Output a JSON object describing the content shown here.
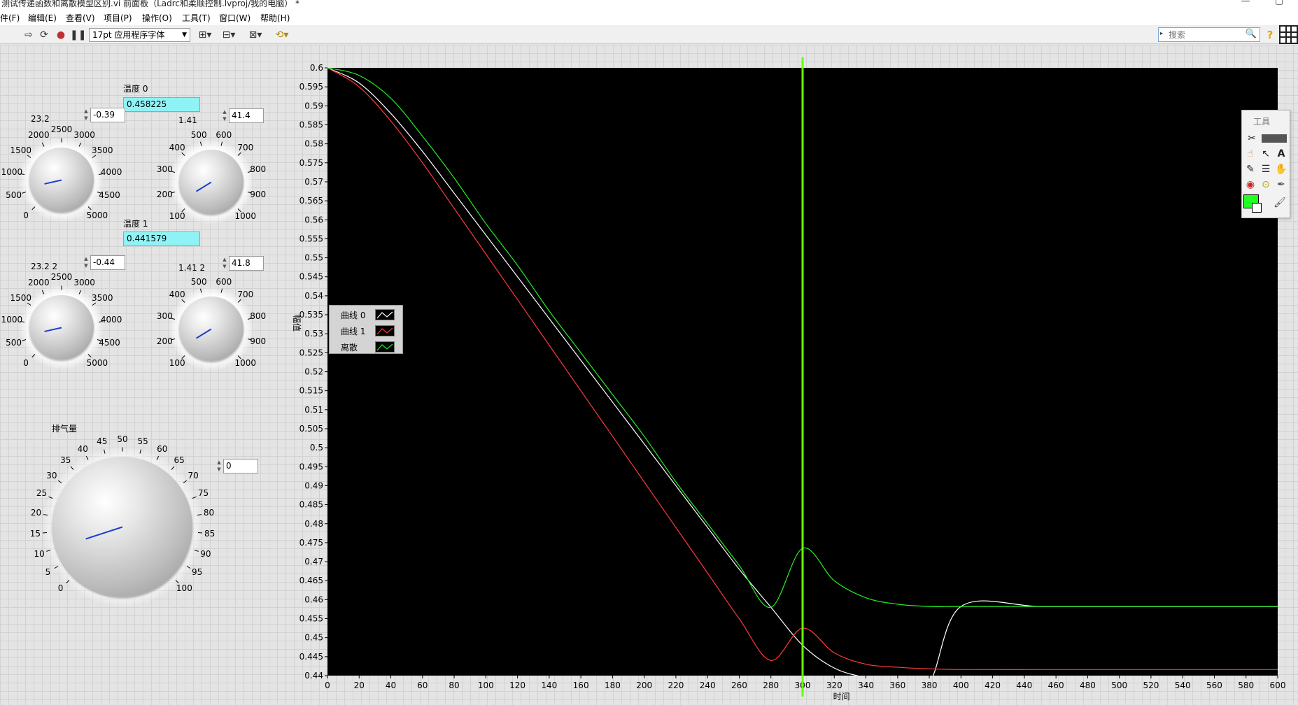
{
  "window": {
    "title": "测试传递函数和离散模型区别.vi 前面板（Ladrc和柔顺控制.lvproj/我的电脑） *",
    "minimize": "—",
    "maximize": "▢"
  },
  "menu": [
    "件(F)",
    "编辑(E)",
    "查看(V)",
    "项目(P)",
    "操作(O)",
    "工具(T)",
    "窗口(W)",
    "帮助(H)"
  ],
  "toolbar": {
    "font": "17pt 应用程序字体",
    "search_placeholder": "搜索"
  },
  "indicators": {
    "temp0_label": "温度 0",
    "temp0_value": "0.458225",
    "temp1_label": "温度 1",
    "temp1_value": "0.441579"
  },
  "controls": {
    "num1": "-0.39",
    "num2": "41.4",
    "num3": "-0.44",
    "num4": "41.8",
    "num5": "0"
  },
  "knobs": {
    "k1": {
      "label": "23.2",
      "ticks": [
        "0",
        "500",
        "1000",
        "1500",
        "2000",
        "2500",
        "3000",
        "3500",
        "4000",
        "4500",
        "5000"
      ],
      "value": 0.12
    },
    "k2": {
      "label": "1.41",
      "ticks": [
        "100",
        "200",
        "300",
        "400",
        "500",
        "600",
        "700",
        "800",
        "900",
        "1000"
      ],
      "value": 0.05
    },
    "k3": {
      "label": "23.2 2",
      "ticks": [
        "0",
        "500",
        "1000",
        "1500",
        "2000",
        "2500",
        "3000",
        "3500",
        "4000",
        "4500",
        "5000"
      ],
      "value": 0.12
    },
    "k4": {
      "label": "1.41 2",
      "ticks": [
        "100",
        "200",
        "300",
        "400",
        "500",
        "600",
        "700",
        "800",
        "900",
        "1000"
      ],
      "value": 0.05
    },
    "k5": {
      "label": "排气量",
      "ticks": [
        "0",
        "5",
        "10",
        "15",
        "20",
        "25",
        "30",
        "35",
        "40",
        "45",
        "50",
        "55",
        "60",
        "65",
        "70",
        "75",
        "80",
        "85",
        "90",
        "95",
        "100"
      ],
      "value": 0.1
    }
  },
  "legend": [
    {
      "name": "曲线 0",
      "color": "#ffffff"
    },
    {
      "name": "曲线 1",
      "color": "#ff3a3a"
    },
    {
      "name": "离散",
      "color": "#22ee22"
    }
  ],
  "tools_palette": {
    "title": "工具"
  },
  "chart_data": {
    "type": "line",
    "xlabel": "时间",
    "ylabel": "幅值",
    "xlim": [
      0,
      600
    ],
    "ylim": [
      0.44,
      0.6
    ],
    "x_ticks": [
      0,
      20,
      40,
      60,
      80,
      100,
      120,
      140,
      160,
      180,
      200,
      220,
      240,
      260,
      280,
      300,
      320,
      340,
      360,
      380,
      400,
      420,
      440,
      460,
      480,
      500,
      520,
      540,
      560,
      580,
      600
    ],
    "y_ticks": [
      0.44,
      0.445,
      0.45,
      0.455,
      0.46,
      0.465,
      0.47,
      0.475,
      0.48,
      0.485,
      0.49,
      0.495,
      0.5,
      0.505,
      0.51,
      0.515,
      0.52,
      0.525,
      0.53,
      0.535,
      0.54,
      0.545,
      0.55,
      0.555,
      0.56,
      0.565,
      0.57,
      0.575,
      0.58,
      0.585,
      0.59,
      0.595,
      0.6
    ],
    "cursor_x": 300,
    "cursor_color": "#66ff00",
    "grid": false,
    "legend_position": "left-middle",
    "series": [
      {
        "name": "曲线 0",
        "color": "#ffffff",
        "x": [
          0,
          20,
          40,
          60,
          80,
          100,
          120,
          140,
          160,
          180,
          200,
          220,
          240,
          260,
          280,
          300,
          320,
          340,
          360,
          380,
          400,
          450,
          500,
          550,
          600
        ],
        "y": [
          0.6,
          0.596,
          0.588,
          0.578,
          0.567,
          0.556,
          0.545,
          0.534,
          0.523,
          0.512,
          0.501,
          0.49,
          0.479,
          0.468,
          0.458,
          0.448,
          0.442,
          0.4395,
          0.4385,
          0.4382,
          0.4582,
          0.4582,
          0.4582,
          0.4582,
          0.4582
        ]
      },
      {
        "name": "曲线 1",
        "color": "#ff3a3a",
        "x": [
          0,
          20,
          40,
          60,
          80,
          100,
          120,
          140,
          160,
          180,
          200,
          220,
          240,
          260,
          280,
          300,
          320,
          340,
          360,
          380,
          400,
          450,
          500,
          550,
          600
        ],
        "y": [
          0.6,
          0.595,
          0.586,
          0.575,
          0.563,
          0.551,
          0.539,
          0.527,
          0.515,
          0.503,
          0.491,
          0.479,
          0.467,
          0.455,
          0.444,
          0.4525,
          0.446,
          0.443,
          0.4422,
          0.4418,
          0.4416,
          0.4416,
          0.4416,
          0.4416,
          0.4416
        ]
      },
      {
        "name": "离散",
        "color": "#22ee22",
        "x": [
          0,
          20,
          40,
          60,
          80,
          100,
          120,
          140,
          160,
          180,
          200,
          220,
          240,
          260,
          280,
          300,
          320,
          340,
          360,
          380,
          400,
          450,
          500,
          550,
          600
        ],
        "y": [
          0.6,
          0.598,
          0.592,
          0.582,
          0.571,
          0.559,
          0.548,
          0.536,
          0.525,
          0.514,
          0.503,
          0.491,
          0.48,
          0.469,
          0.458,
          0.4735,
          0.465,
          0.4605,
          0.4588,
          0.4582,
          0.4582,
          0.4582,
          0.4582,
          0.4582,
          0.4582
        ]
      }
    ]
  }
}
